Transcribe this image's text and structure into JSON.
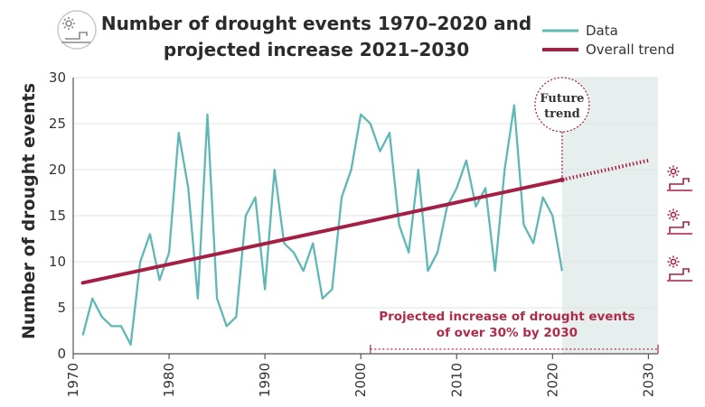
{
  "title_line1": "Number of drought events 1970–2020 and",
  "title_line2": "projected increase 2021–2030",
  "legend": [
    {
      "label": "Data",
      "color": "#5fb8b5"
    },
    {
      "label": "Overall trend",
      "color": "#a51f45"
    }
  ],
  "callout_line1": "Future",
  "callout_line2": "trend",
  "annotation_line1": "Projected increase of drought events",
  "annotation_line2": "of over 30% by 2030",
  "icons": [
    "sun-faucet-icon",
    "sun-faucet-icon",
    "sun-faucet-icon",
    "sun-faucet-icon"
  ],
  "colors": {
    "data": "#5fb8b5",
    "trend": "#a51f45",
    "future_shade": "#e6efee",
    "annotation": "#b02a4a"
  },
  "chart_data": {
    "type": "line",
    "title": "Number of drought events 1970–2020 and projected increase 2021–2030",
    "xlabel": "",
    "ylabel": "Number of drought events",
    "xlim": [
      1970,
      2031
    ],
    "ylim": [
      0,
      30
    ],
    "xticks": [
      1970,
      1980,
      1990,
      2000,
      2010,
      2020,
      2030
    ],
    "yticks": [
      0,
      5,
      10,
      15,
      20,
      25,
      30
    ],
    "grid": "horizontal",
    "legend_position": "top-right",
    "future_region": [
      2021,
      2031
    ],
    "series": [
      {
        "name": "Data",
        "x": [
          1971,
          1972,
          1973,
          1974,
          1975,
          1976,
          1977,
          1978,
          1979,
          1980,
          1981,
          1982,
          1983,
          1984,
          1985,
          1986,
          1987,
          1988,
          1989,
          1990,
          1991,
          1992,
          1993,
          1994,
          1995,
          1996,
          1997,
          1998,
          1999,
          2000,
          2001,
          2002,
          2003,
          2004,
          2005,
          2006,
          2007,
          2008,
          2009,
          2010,
          2011,
          2012,
          2013,
          2014,
          2015,
          2016,
          2017,
          2018,
          2019,
          2020,
          2021
        ],
        "values": [
          2,
          6,
          4,
          3,
          3,
          1,
          10,
          13,
          8,
          11,
          24,
          18,
          6,
          26,
          6,
          3,
          4,
          15,
          17,
          7,
          20,
          12,
          11,
          9,
          12,
          6,
          7,
          17,
          20,
          26,
          25,
          22,
          24,
          14,
          11,
          20,
          9,
          11,
          16,
          18,
          21,
          16,
          18,
          9,
          20,
          27,
          14,
          12,
          17,
          15,
          9
        ]
      },
      {
        "name": "Overall trend",
        "x": [
          1971,
          2021
        ],
        "values": [
          7.7,
          18.9
        ]
      },
      {
        "name": "Projected trend",
        "x": [
          2021,
          2030
        ],
        "values": [
          18.9,
          21
        ]
      }
    ],
    "annotations": [
      {
        "text": "Future trend",
        "x": 2021
      },
      {
        "text": "Projected increase of drought events of over 30% by 2030",
        "x_range": [
          2001,
          2031
        ]
      }
    ]
  }
}
